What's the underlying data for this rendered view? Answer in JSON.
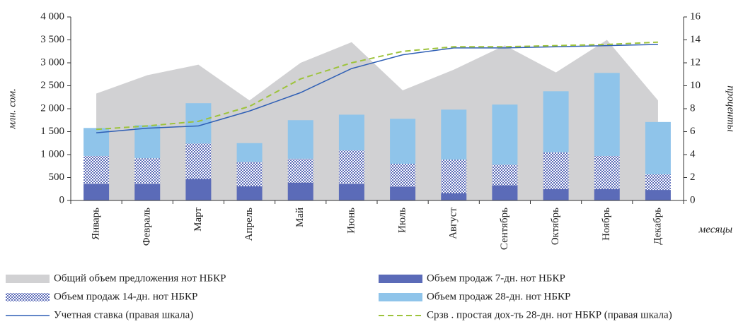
{
  "chart_data": {
    "type": "bar",
    "categories": [
      "Январь",
      "Февраль",
      "Март",
      "Апрель",
      "Май",
      "Июнь",
      "Июль",
      "Август",
      "Сентябрь",
      "Октябрь",
      "Ноябрь",
      "Декабрь"
    ],
    "y_label": "млн. сом.",
    "y2_label": "проценты",
    "x_label": "месяцы",
    "ylim": [
      0,
      4000
    ],
    "yticks": [
      0,
      500,
      {
        "value": 1000,
        "label": "1 000"
      },
      {
        "value": 1500,
        "label": "1 500"
      },
      {
        "value": 2000,
        "label": "2 000"
      },
      {
        "value": 2500,
        "label": "2 500"
      },
      {
        "value": 3000,
        "label": "3 000"
      },
      {
        "value": 3500,
        "label": "3 500"
      },
      {
        "value": 4000,
        "label": "4 000"
      }
    ],
    "y2lim": [
      0,
      16
    ],
    "y2ticks": [
      0,
      2,
      4,
      6,
      8,
      10,
      12,
      14,
      16
    ],
    "series": [
      {
        "name": "Общий объем предложения нот НБКР",
        "type": "area",
        "color": "#d1d1d3",
        "values": [
          2330,
          2730,
          2960,
          2180,
          3000,
          3450,
          2400,
          2850,
          3380,
          2790,
          3500,
          2180
        ]
      },
      {
        "name": "Объем продаж 7-дн. нот НБКР",
        "type": "bar",
        "color": "#5b6bb8",
        "values": [
          360,
          360,
          470,
          310,
          390,
          360,
          300,
          160,
          330,
          250,
          250,
          230
        ]
      },
      {
        "name": "Объем продаж 14-дн. нот НБКР",
        "type": "bar",
        "color": "#5b6bb8",
        "pattern": "checker",
        "values": [
          610,
          560,
          770,
          530,
          520,
          730,
          500,
          730,
          450,
          800,
          720,
          340
        ]
      },
      {
        "name": "Объем продаж 28-дн. нот НБКР",
        "type": "bar",
        "color": "#8fc4ea",
        "values": [
          610,
          720,
          880,
          410,
          840,
          780,
          980,
          1090,
          1310,
          1330,
          1810,
          1140
        ]
      },
      {
        "name": "Учетная ставка (правая шкала)",
        "type": "line",
        "axis": "y2",
        "color": "#2f5fb5",
        "dashed": false,
        "values": [
          5.9,
          6.3,
          6.5,
          7.8,
          9.4,
          11.5,
          12.7,
          13.3,
          13.3,
          13.4,
          13.5,
          13.6
        ]
      },
      {
        "name": "Срзв . простая дох-ть 28-дн. нот НБКР (правая шкала)",
        "type": "line",
        "axis": "y2",
        "color": "#9dc33b",
        "dashed": true,
        "values": [
          6.2,
          6.5,
          6.9,
          8.2,
          10.6,
          12.0,
          13.0,
          13.4,
          13.4,
          13.5,
          13.6,
          13.8
        ]
      }
    ]
  }
}
